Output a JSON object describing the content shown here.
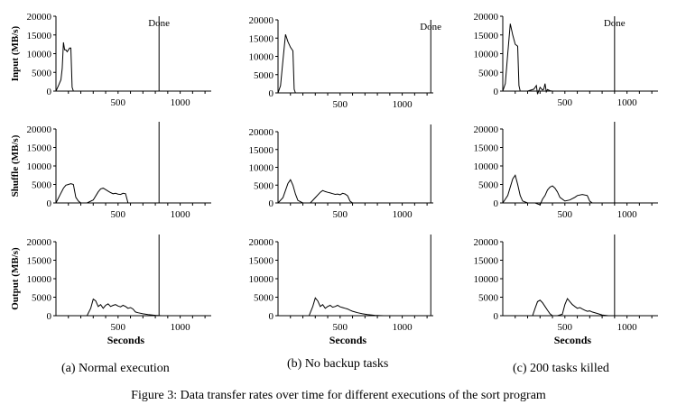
{
  "figure": {
    "caption": "Figure 3: Data transfer rates over time for different executions of the sort program",
    "columns": [
      {
        "caption": "(a) Normal execution"
      },
      {
        "caption": "(b) No backup tasks"
      },
      {
        "caption": "(c) 200 tasks killed"
      }
    ]
  },
  "chart_data": [
    {
      "id": "a-input",
      "type": "line",
      "ylabel": "Input (MB/s)",
      "xlabel": "",
      "xlim": [
        0,
        1250
      ],
      "ylim": [
        0,
        20000
      ],
      "xticks": [
        500,
        1000
      ],
      "yticks": [
        0,
        5000,
        10000,
        15000,
        20000
      ],
      "annotation": {
        "text": "Done",
        "x": 830
      },
      "series": [
        {
          "x": [
            0,
            20,
            40,
            50,
            60,
            70,
            80,
            90,
            100,
            110,
            120,
            130,
            140
          ],
          "y": [
            0,
            1500,
            3000,
            6000,
            13000,
            11000,
            11000,
            10500,
            11000,
            11500,
            11500,
            1000,
            0
          ]
        }
      ]
    },
    {
      "id": "a-shuffle",
      "type": "line",
      "ylabel": "Shuffle (MB/s)",
      "xlabel": "",
      "xlim": [
        0,
        1250
      ],
      "ylim": [
        0,
        20000
      ],
      "xticks": [
        500,
        1000
      ],
      "yticks": [
        0,
        5000,
        10000,
        15000,
        20000
      ],
      "annotation": {
        "text": "",
        "x": 830
      },
      "series": [
        {
          "x": [
            0,
            30,
            60,
            80,
            100,
            120,
            140,
            160,
            180,
            200,
            250,
            300,
            340,
            360,
            380,
            400,
            420,
            440,
            460,
            480,
            500,
            520,
            540,
            560,
            580,
            600
          ],
          "y": [
            0,
            2000,
            4000,
            4800,
            5000,
            5200,
            5000,
            1500,
            500,
            0,
            0,
            800,
            3000,
            3800,
            4000,
            3600,
            3200,
            2800,
            2500,
            2600,
            2400,
            2300,
            2600,
            2500,
            0,
            0
          ]
        }
      ]
    },
    {
      "id": "a-output",
      "type": "line",
      "ylabel": "Output (MB/s)",
      "xlabel": "Seconds",
      "xlim": [
        0,
        1250
      ],
      "ylim": [
        0,
        20000
      ],
      "xticks": [
        500,
        1000
      ],
      "yticks": [
        0,
        5000,
        10000,
        15000,
        20000
      ],
      "annotation": {
        "text": "",
        "x": 830
      },
      "series": [
        {
          "x": [
            0,
            250,
            280,
            300,
            320,
            340,
            360,
            380,
            400,
            420,
            440,
            460,
            480,
            500,
            520,
            540,
            560,
            580,
            600,
            620,
            640,
            660,
            700,
            740,
            800,
            850
          ],
          "y": [
            0,
            0,
            2000,
            4500,
            4000,
            2500,
            3000,
            2000,
            2800,
            3200,
            2500,
            2800,
            3000,
            2600,
            2400,
            2800,
            2500,
            2000,
            2200,
            1800,
            1000,
            800,
            500,
            300,
            100,
            0
          ]
        }
      ]
    },
    {
      "id": "b-input",
      "type": "line",
      "ylabel": "",
      "xlabel": "",
      "xlim": [
        0,
        1250
      ],
      "ylim": [
        0,
        20000
      ],
      "xticks": [
        500,
        1000
      ],
      "yticks": [
        0,
        5000,
        10000,
        15000,
        20000
      ],
      "annotation": {
        "text": "Done",
        "x": 1230
      },
      "series": [
        {
          "x": [
            0,
            20,
            40,
            60,
            80,
            100,
            120,
            130,
            140
          ],
          "y": [
            0,
            2000,
            9000,
            16000,
            14000,
            12500,
            11500,
            1000,
            0
          ]
        }
      ]
    },
    {
      "id": "b-shuffle",
      "type": "line",
      "ylabel": "",
      "xlabel": "",
      "xlim": [
        0,
        1250
      ],
      "ylim": [
        0,
        20000
      ],
      "xticks": [
        500,
        1000
      ],
      "yticks": [
        0,
        5000,
        10000,
        15000,
        20000
      ],
      "annotation": {
        "text": "",
        "x": 1230
      },
      "series": [
        {
          "x": [
            0,
            40,
            80,
            100,
            120,
            140,
            160,
            200,
            260,
            300,
            340,
            360,
            380,
            400,
            420,
            440,
            460,
            480,
            500,
            520,
            540,
            560,
            580,
            600
          ],
          "y": [
            0,
            1500,
            5500,
            6500,
            5000,
            2500,
            700,
            0,
            0,
            1500,
            3000,
            3500,
            3200,
            3000,
            2800,
            2600,
            2400,
            2500,
            2300,
            2700,
            2500,
            2000,
            500,
            0
          ]
        }
      ]
    },
    {
      "id": "b-output",
      "type": "line",
      "ylabel": "",
      "xlabel": "Seconds",
      "xlim": [
        0,
        1250
      ],
      "ylim": [
        0,
        20000
      ],
      "xticks": [
        500,
        1000
      ],
      "yticks": [
        0,
        5000,
        10000,
        15000,
        20000
      ],
      "annotation": {
        "text": "",
        "x": 1230
      },
      "series": [
        {
          "x": [
            0,
            250,
            280,
            300,
            320,
            340,
            360,
            380,
            400,
            420,
            440,
            460,
            480,
            500,
            520,
            540,
            560,
            580,
            600,
            620,
            640,
            680,
            720,
            780,
            850
          ],
          "y": [
            0,
            0,
            2500,
            4800,
            4000,
            2500,
            3000,
            2000,
            2500,
            2800,
            2300,
            2500,
            2800,
            2400,
            2200,
            2000,
            1800,
            1500,
            1200,
            1000,
            800,
            500,
            300,
            100,
            0
          ]
        }
      ]
    },
    {
      "id": "c-input",
      "type": "line",
      "ylabel": "",
      "xlabel": "",
      "xlim": [
        0,
        1250
      ],
      "ylim": [
        0,
        20000
      ],
      "xticks": [
        500,
        1000
      ],
      "yticks": [
        0,
        5000,
        10000,
        15000,
        20000
      ],
      "annotation": {
        "text": "Done",
        "x": 900
      },
      "series": [
        {
          "x": [
            0,
            20,
            40,
            60,
            80,
            100,
            120,
            130,
            140,
            200,
            250,
            270,
            280,
            300,
            320,
            330,
            340,
            350,
            360,
            380,
            400,
            500,
            600,
            700,
            800,
            900
          ],
          "y": [
            0,
            2000,
            10000,
            18000,
            15000,
            12500,
            12000,
            1500,
            0,
            0,
            500,
            1500,
            -800,
            1000,
            300,
            500,
            2000,
            -200,
            400,
            100,
            0,
            0,
            0,
            0,
            0,
            0
          ]
        }
      ]
    },
    {
      "id": "c-shuffle",
      "type": "line",
      "ylabel": "",
      "xlabel": "",
      "xlim": [
        0,
        1250
      ],
      "ylim": [
        0,
        20000
      ],
      "xticks": [
        500,
        1000
      ],
      "yticks": [
        0,
        5000,
        10000,
        15000,
        20000
      ],
      "annotation": {
        "text": "",
        "x": 900
      },
      "series": [
        {
          "x": [
            0,
            40,
            80,
            100,
            120,
            140,
            160,
            200,
            260,
            300,
            320,
            340,
            360,
            380,
            400,
            420,
            440,
            460,
            500,
            540,
            580,
            600,
            640,
            680,
            700,
            720
          ],
          "y": [
            0,
            2000,
            6500,
            7500,
            5000,
            2000,
            500,
            0,
            0,
            -500,
            1000,
            2000,
            3500,
            4300,
            4600,
            4000,
            3000,
            1500,
            500,
            800,
            1500,
            2000,
            2300,
            2000,
            500,
            0
          ]
        }
      ]
    },
    {
      "id": "c-output",
      "type": "line",
      "ylabel": "",
      "xlabel": "Seconds",
      "xlim": [
        0,
        1250
      ],
      "ylim": [
        0,
        20000
      ],
      "xticks": [
        500,
        1000
      ],
      "yticks": [
        0,
        5000,
        10000,
        15000,
        20000
      ],
      "annotation": {
        "text": "",
        "x": 900
      },
      "series": [
        {
          "x": [
            0,
            240,
            260,
            280,
            300,
            320,
            340,
            360,
            380,
            400,
            440,
            480,
            500,
            520,
            540,
            560,
            580,
            600,
            620,
            640,
            660,
            680,
            700,
            720,
            760,
            800,
            850
          ],
          "y": [
            0,
            0,
            2000,
            3800,
            4200,
            3500,
            2500,
            1500,
            500,
            0,
            0,
            400,
            3000,
            4600,
            3800,
            3000,
            2500,
            2000,
            2200,
            1800,
            1500,
            1200,
            1300,
            1000,
            600,
            200,
            0
          ]
        }
      ]
    }
  ]
}
